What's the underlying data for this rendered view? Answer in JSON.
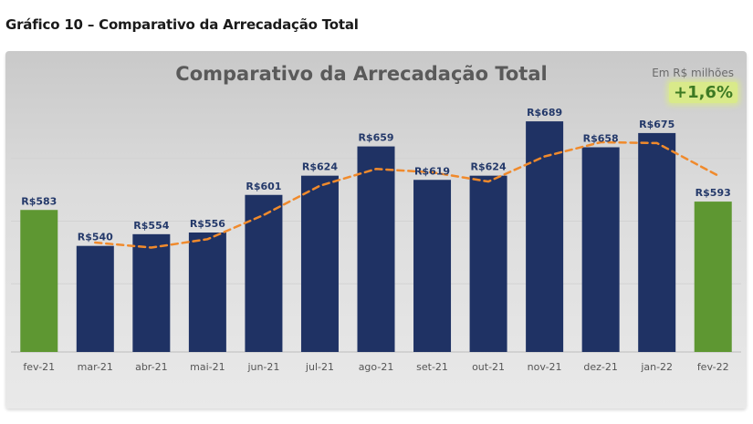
{
  "caption": "Gráfico 10 – Comparativo da Arrecadação Total",
  "unit_note": "Em R$ milhões",
  "growth_badge": "+1,6%",
  "colors": {
    "bar_navy": "#1f3264",
    "bar_green": "#5e9732",
    "trend_line": "#f08a2c",
    "value_label": "#24396a",
    "badge_bg": "#d9ea8a",
    "badge_text": "#3d7a23"
  },
  "chart_data": {
    "type": "bar",
    "title": "Comparativo da Arrecadação Total",
    "xlabel": "",
    "ylabel": "",
    "ylim": [
      400,
      700
    ],
    "grid": true,
    "categories": [
      "fev-21",
      "mar-21",
      "abr-21",
      "mai-21",
      "jun-21",
      "jul-21",
      "ago-21",
      "set-21",
      "out-21",
      "nov-21",
      "dez-21",
      "jan-22",
      "fev-22"
    ],
    "values": [
      583,
      540,
      554,
      556,
      601,
      624,
      659,
      619,
      624,
      689,
      658,
      675,
      593
    ],
    "value_labels": [
      "R$583",
      "R$540",
      "R$554",
      "R$556",
      "R$601",
      "R$624",
      "R$659",
      "R$619",
      "R$624",
      "R$689",
      "R$658",
      "R$675",
      "R$593"
    ],
    "highlighted": [
      true,
      false,
      false,
      false,
      false,
      false,
      false,
      false,
      false,
      false,
      false,
      false,
      true
    ],
    "trend": {
      "style": "dashed",
      "categories": [
        "mar-21",
        "abr-21",
        "mai-21",
        "jun-21",
        "jul-21",
        "ago-21",
        "set-21",
        "out-21",
        "nov-21",
        "dez-21",
        "jan-22",
        "fev-22"
      ],
      "values": [
        544,
        538,
        548,
        577,
        612,
        632,
        628,
        617,
        647,
        664,
        663,
        625
      ]
    }
  }
}
